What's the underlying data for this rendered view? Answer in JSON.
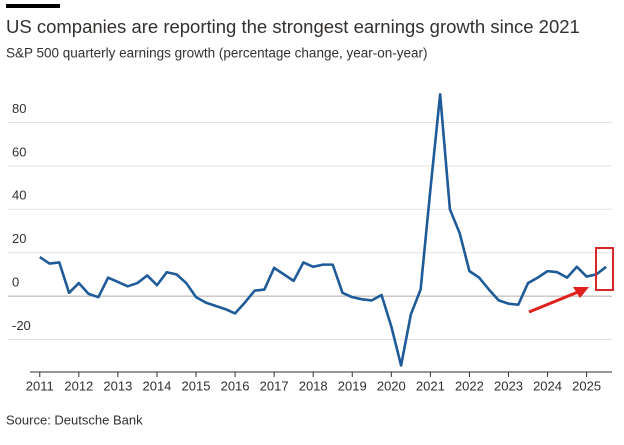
{
  "chart_data": {
    "type": "line",
    "title": "US companies are reporting the strongest earnings growth since 2021",
    "subtitle": "S&P 500 quarterly earnings growth (percentage change, year-on-year)",
    "source": "Source: Deutsche Bank",
    "x": [
      2011,
      2011.25,
      2011.5,
      2011.75,
      2012,
      2012.25,
      2012.5,
      2012.75,
      2013,
      2013.25,
      2013.5,
      2013.75,
      2014,
      2014.25,
      2014.5,
      2014.75,
      2015,
      2015.25,
      2015.5,
      2015.75,
      2016,
      2016.25,
      2016.5,
      2016.75,
      2017,
      2017.25,
      2017.5,
      2017.75,
      2018,
      2018.25,
      2018.5,
      2018.75,
      2019,
      2019.25,
      2019.5,
      2019.75,
      2020,
      2020.25,
      2020.5,
      2020.75,
      2021,
      2021.25,
      2021.5,
      2021.75,
      2022,
      2022.25,
      2022.5,
      2022.75,
      2023,
      2023.25,
      2023.5,
      2023.75,
      2024,
      2024.25,
      2024.5,
      2024.75,
      2025,
      2025.25,
      2025.5
    ],
    "values": [
      18,
      15,
      15.5,
      1.5,
      6,
      1,
      -0.5,
      8.5,
      6.5,
      4.5,
      6,
      9.5,
      5,
      11,
      10,
      6,
      -0.5,
      -3,
      -4.5,
      -6,
      -8,
      -3,
      2.5,
      3,
      13,
      10,
      7,
      15.5,
      13.5,
      14.5,
      14.5,
      1.5,
      -0.5,
      -1.5,
      -2,
      0.5,
      -14,
      -32,
      -8.5,
      3,
      49,
      93,
      40,
      29,
      11.5,
      8.5,
      3,
      -2,
      -3.5,
      -4,
      6,
      8.5,
      11.5,
      11,
      8.5,
      13.5,
      9,
      10,
      13.5
    ],
    "color": "#1f5a99",
    "xlim": [
      2010.75,
      2025.65
    ],
    "xticks": [
      2011,
      2012,
      2013,
      2014,
      2015,
      2016,
      2017,
      2018,
      2019,
      2020,
      2021,
      2022,
      2023,
      2024,
      2025
    ],
    "ylim": [
      -35,
      95
    ],
    "yticks": [
      -20,
      0,
      20,
      40,
      60,
      80
    ],
    "grid": true
  }
}
